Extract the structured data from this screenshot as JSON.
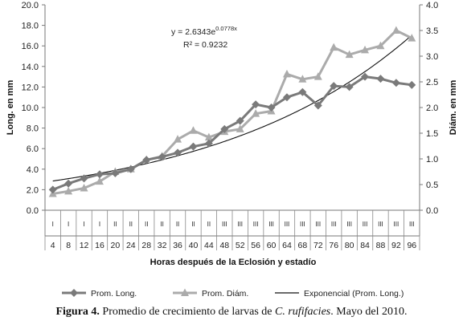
{
  "chart_data": {
    "type": "line",
    "x_label": "Horas después de la Eclosión  y estadío",
    "y_left_label": "Long. en mm",
    "y_right_label": "Diám. en mm",
    "y_left_range": [
      0,
      20
    ],
    "y_left_ticks": [
      "0.0",
      "2.0",
      "4.0",
      "6.0",
      "8.0",
      "10.0",
      "12.0",
      "14.0",
      "16.0",
      "18.0",
      "20.0"
    ],
    "y_right_range": [
      0,
      4
    ],
    "y_right_ticks": [
      "0.0",
      "0.5",
      "1.0",
      "1.5",
      "2.0",
      "2.5",
      "3.0",
      "3.5",
      "4.0"
    ],
    "categories": [
      "4",
      "8",
      "12",
      "16",
      "20",
      "24",
      "28",
      "32",
      "36",
      "40",
      "44",
      "48",
      "52",
      "56",
      "60",
      "64",
      "68",
      "72",
      "76",
      "80",
      "84",
      "88",
      "92",
      "96"
    ],
    "stages": [
      "I",
      "I",
      "I",
      "I",
      "II",
      "II",
      "II",
      "II",
      "II",
      "II",
      "II",
      "III",
      "III",
      "III",
      "III",
      "III",
      "III",
      "III",
      "III",
      "III",
      "III",
      "III",
      "III",
      "III"
    ],
    "series": [
      {
        "name": "Prom. Long.",
        "axis": "left",
        "color": "#7a7a7a",
        "marker": "diamond",
        "values": [
          2.0,
          2.6,
          3.1,
          3.5,
          3.6,
          4.0,
          4.9,
          5.2,
          5.6,
          6.2,
          6.5,
          7.9,
          8.7,
          10.3,
          10.0,
          11.0,
          11.5,
          10.2,
          12.1,
          12.0,
          13.0,
          12.8,
          12.4,
          12.2
        ]
      },
      {
        "name": "Prom. Diám.",
        "axis": "right",
        "color": "#ababab",
        "marker": "triangle",
        "values": [
          0.32,
          0.37,
          0.43,
          0.56,
          0.75,
          0.8,
          0.98,
          1.05,
          1.38,
          1.55,
          1.42,
          1.53,
          1.58,
          1.88,
          1.93,
          2.65,
          2.55,
          2.6,
          3.17,
          3.03,
          3.12,
          3.2,
          3.5,
          3.35
        ]
      },
      {
        "name": "Exponencial (Prom. Long.)",
        "axis": "left",
        "color": "#111111",
        "type": "trendline",
        "model": {
          "a": 2.6343,
          "b": 0.0778
        }
      }
    ],
    "equation": {
      "text": "y = 2.6343e",
      "exponent": "0.0778x",
      "r2": "R² = 0.9232"
    }
  },
  "caption": {
    "label": "Figura 4.",
    "text_before": " Promedio de crecimiento de larvas de ",
    "species": "C. rufifacies",
    "text_after": ". Mayo del 2010."
  }
}
